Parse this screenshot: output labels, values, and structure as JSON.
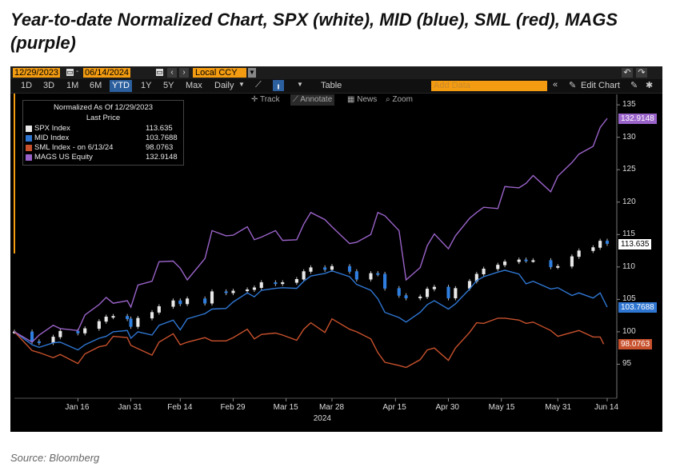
{
  "title": "Year-to-date Normalized Chart, SPX (white), MID (blue), SML (red), MAGS (purple)",
  "source": "Source: Bloomberg",
  "toolbar": {
    "start_date": "12/29/2023",
    "end_date": "06/14/2024",
    "currency": "Local CCY",
    "ranges": [
      "1D",
      "3D",
      "1M",
      "6M",
      "YTD",
      "1Y",
      "5Y",
      "Max"
    ],
    "active_range": "YTD",
    "frequency": "Daily",
    "table_label": "Table",
    "add_data_placeholder": "Add Data",
    "edit_chart_label": "Edit Chart",
    "tools": [
      "Track",
      "Annotate",
      "News",
      "Zoom"
    ],
    "active_tool": "Annotate"
  },
  "colors": {
    "spx": "#e8e8e8",
    "mid": "#2f76d2",
    "sml": "#c8512d",
    "mags": "#9a63c9",
    "active_button": "#2c5f9e",
    "accent_orange": "#f39c12"
  },
  "legend": {
    "header1": "Normalized As Of 12/29/2023",
    "header2": "Last Price",
    "items": [
      {
        "name": "SPX Index",
        "value": "113.635"
      },
      {
        "name": "MID Index",
        "value": "103.7688"
      },
      {
        "name": "SML Index - on 6/13/24",
        "value": "98.0763"
      },
      {
        "name": "MAGS US Equity",
        "value": "132.9148"
      }
    ]
  },
  "chart_data": {
    "type": "line",
    "title": "",
    "xlabel": "2024",
    "ylabel": "",
    "ylim": [
      90,
      136
    ],
    "y_ticks": [
      95,
      100,
      105,
      110,
      115,
      120,
      125,
      130,
      135
    ],
    "x_tick_labels": [
      "Jan 16",
      "Jan 31",
      "Feb 14",
      "Feb 29",
      "Mar 15",
      "Mar 28",
      "Apr 15",
      "Apr 30",
      "May 15",
      "May 31",
      "Jun 14"
    ],
    "x_tick_dates": [
      "2024-01-16",
      "2024-01-31",
      "2024-02-14",
      "2024-02-29",
      "2024-03-15",
      "2024-03-28",
      "2024-04-15",
      "2024-04-30",
      "2024-05-15",
      "2024-05-31",
      "2024-06-14"
    ],
    "x_range": [
      "2023-12-29",
      "2024-06-14"
    ],
    "series": [
      {
        "name": "SPX Index",
        "style": "candlestick",
        "last": "113.635",
        "x": [
          "2023-12-29",
          "2024-01-03",
          "2024-01-05",
          "2024-01-09",
          "2024-01-11",
          "2024-01-16",
          "2024-01-18",
          "2024-01-22",
          "2024-01-24",
          "2024-01-26",
          "2024-01-30",
          "2024-01-31",
          "2024-02-02",
          "2024-02-06",
          "2024-02-08",
          "2024-02-12",
          "2024-02-14",
          "2024-02-16",
          "2024-02-21",
          "2024-02-23",
          "2024-02-27",
          "2024-02-29",
          "2024-03-04",
          "2024-03-06",
          "2024-03-08",
          "2024-03-12",
          "2024-03-14",
          "2024-03-18",
          "2024-03-20",
          "2024-03-22",
          "2024-03-26",
          "2024-03-28",
          "2024-04-02",
          "2024-04-04",
          "2024-04-08",
          "2024-04-10",
          "2024-04-12",
          "2024-04-16",
          "2024-04-18",
          "2024-04-22",
          "2024-04-24",
          "2024-04-26",
          "2024-04-30",
          "2024-05-02",
          "2024-05-06",
          "2024-05-08",
          "2024-05-10",
          "2024-05-14",
          "2024-05-16",
          "2024-05-20",
          "2024-05-22",
          "2024-05-24",
          "2024-05-29",
          "2024-05-31",
          "2024-06-04",
          "2024-06-06",
          "2024-06-10",
          "2024-06-12",
          "2024-06-14"
        ],
        "values": [
          100.0,
          98.5,
          98.3,
          99.2,
          100.1,
          99.8,
          100.5,
          101.6,
          102.3,
          102.4,
          102.0,
          100.8,
          102.1,
          103.0,
          103.9,
          104.8,
          104.3,
          105.1,
          104.4,
          106.2,
          106.0,
          106.3,
          106.5,
          106.8,
          107.6,
          107.4,
          107.6,
          108.1,
          109.3,
          109.9,
          109.6,
          110.1,
          109.3,
          108.1,
          109.0,
          108.9,
          106.7,
          105.6,
          105.2,
          105.4,
          106.6,
          106.9,
          105.2,
          106.7,
          107.8,
          108.9,
          109.7,
          110.3,
          110.8,
          111.1,
          111.0,
          111.0,
          110.0,
          110.1,
          111.6,
          112.5,
          113.0,
          114.0,
          113.6
        ]
      },
      {
        "name": "MID Index",
        "last": "103.7688",
        "x": [
          "2023-12-29",
          "2024-01-03",
          "2024-01-05",
          "2024-01-09",
          "2024-01-11",
          "2024-01-16",
          "2024-01-18",
          "2024-01-22",
          "2024-01-24",
          "2024-01-26",
          "2024-01-30",
          "2024-01-31",
          "2024-02-02",
          "2024-02-06",
          "2024-02-08",
          "2024-02-12",
          "2024-02-14",
          "2024-02-16",
          "2024-02-21",
          "2024-02-23",
          "2024-02-27",
          "2024-02-29",
          "2024-03-04",
          "2024-03-06",
          "2024-03-08",
          "2024-03-12",
          "2024-03-14",
          "2024-03-18",
          "2024-03-20",
          "2024-03-22",
          "2024-03-26",
          "2024-03-28",
          "2024-04-02",
          "2024-04-04",
          "2024-04-08",
          "2024-04-10",
          "2024-04-12",
          "2024-04-16",
          "2024-04-18",
          "2024-04-22",
          "2024-04-24",
          "2024-04-26",
          "2024-04-30",
          "2024-05-02",
          "2024-05-06",
          "2024-05-08",
          "2024-05-10",
          "2024-05-14",
          "2024-05-16",
          "2024-05-20",
          "2024-05-22",
          "2024-05-24",
          "2024-05-29",
          "2024-05-31",
          "2024-06-04",
          "2024-06-06",
          "2024-06-10",
          "2024-06-12",
          "2024-06-14"
        ],
        "values": [
          100.0,
          98.0,
          97.6,
          98.3,
          98.4,
          97.2,
          98.0,
          99.0,
          99.3,
          100.0,
          100.2,
          99.0,
          100.0,
          99.5,
          101.0,
          101.8,
          100.3,
          102.0,
          102.8,
          103.5,
          103.6,
          104.6,
          106.0,
          105.4,
          106.4,
          106.7,
          106.8,
          106.7,
          107.8,
          108.6,
          109.0,
          109.4,
          108.5,
          107.3,
          106.4,
          105.1,
          103.0,
          102.2,
          101.5,
          103.0,
          104.2,
          104.8,
          103.5,
          104.3,
          106.6,
          107.9,
          108.5,
          109.2,
          109.5,
          108.9,
          107.4,
          107.8,
          106.6,
          106.8,
          105.6,
          106.0,
          105.2,
          106.0,
          103.8
        ]
      },
      {
        "name": "SML Index",
        "last": "98.0763",
        "x": [
          "2023-12-29",
          "2024-01-03",
          "2024-01-05",
          "2024-01-09",
          "2024-01-11",
          "2024-01-16",
          "2024-01-18",
          "2024-01-22",
          "2024-01-24",
          "2024-01-26",
          "2024-01-30",
          "2024-01-31",
          "2024-02-02",
          "2024-02-06",
          "2024-02-08",
          "2024-02-12",
          "2024-02-14",
          "2024-02-16",
          "2024-02-21",
          "2024-02-23",
          "2024-02-27",
          "2024-02-29",
          "2024-03-04",
          "2024-03-06",
          "2024-03-08",
          "2024-03-12",
          "2024-03-14",
          "2024-03-18",
          "2024-03-20",
          "2024-03-22",
          "2024-03-26",
          "2024-03-28",
          "2024-04-02",
          "2024-04-04",
          "2024-04-08",
          "2024-04-10",
          "2024-04-12",
          "2024-04-16",
          "2024-04-18",
          "2024-04-22",
          "2024-04-24",
          "2024-04-26",
          "2024-04-30",
          "2024-05-02",
          "2024-05-06",
          "2024-05-08",
          "2024-05-10",
          "2024-05-14",
          "2024-05-16",
          "2024-05-20",
          "2024-05-22",
          "2024-05-24",
          "2024-05-29",
          "2024-05-31",
          "2024-06-04",
          "2024-06-06",
          "2024-06-10",
          "2024-06-12",
          "2024-06-13"
        ],
        "values": [
          100.0,
          97.1,
          96.8,
          96.0,
          96.5,
          95.1,
          96.6,
          97.7,
          97.9,
          99.3,
          99.1,
          97.9,
          97.4,
          96.4,
          98.4,
          99.7,
          98.0,
          98.4,
          99.1,
          98.6,
          98.6,
          99.1,
          100.4,
          98.9,
          99.6,
          99.8,
          99.5,
          98.7,
          100.4,
          101.4,
          99.9,
          102.0,
          100.4,
          100.0,
          98.9,
          96.8,
          95.3,
          94.8,
          94.5,
          95.7,
          97.2,
          97.5,
          95.6,
          97.5,
          99.9,
          101.4,
          101.3,
          102.1,
          102.1,
          101.8,
          101.3,
          101.5,
          100.2,
          99.3,
          99.9,
          100.2,
          99.2,
          99.2,
          98.1
        ]
      },
      {
        "name": "MAGS US Equity",
        "last": "132.9148",
        "x": [
          "2023-12-29",
          "2024-01-03",
          "2024-01-05",
          "2024-01-09",
          "2024-01-11",
          "2024-01-16",
          "2024-01-18",
          "2024-01-22",
          "2024-01-24",
          "2024-01-26",
          "2024-01-30",
          "2024-01-31",
          "2024-02-02",
          "2024-02-06",
          "2024-02-08",
          "2024-02-12",
          "2024-02-14",
          "2024-02-16",
          "2024-02-21",
          "2024-02-23",
          "2024-02-27",
          "2024-02-29",
          "2024-03-04",
          "2024-03-06",
          "2024-03-08",
          "2024-03-12",
          "2024-03-14",
          "2024-03-18",
          "2024-03-20",
          "2024-03-22",
          "2024-03-26",
          "2024-03-28",
          "2024-04-02",
          "2024-04-04",
          "2024-04-08",
          "2024-04-10",
          "2024-04-12",
          "2024-04-16",
          "2024-04-18",
          "2024-04-22",
          "2024-04-24",
          "2024-04-26",
          "2024-04-30",
          "2024-05-02",
          "2024-05-06",
          "2024-05-08",
          "2024-05-10",
          "2024-05-14",
          "2024-05-16",
          "2024-05-20",
          "2024-05-22",
          "2024-05-24",
          "2024-05-29",
          "2024-05-31",
          "2024-06-04",
          "2024-06-06",
          "2024-06-10",
          "2024-06-12",
          "2024-06-14"
        ],
        "values": [
          100.0,
          98.4,
          99.5,
          101.0,
          100.5,
          100.2,
          102.6,
          104.2,
          105.3,
          104.4,
          104.8,
          103.8,
          107.2,
          107.8,
          110.8,
          110.9,
          109.8,
          108.0,
          111.3,
          115.6,
          114.8,
          114.9,
          116.2,
          114.2,
          114.6,
          115.6,
          114.1,
          114.2,
          116.6,
          118.4,
          117.3,
          116.2,
          113.6,
          113.8,
          115.0,
          118.4,
          117.9,
          115.6,
          108.0,
          109.9,
          113.3,
          115.1,
          112.8,
          114.8,
          117.5,
          118.4,
          119.2,
          119.0,
          122.4,
          122.2,
          122.9,
          124.1,
          121.6,
          124.0,
          126.1,
          127.4,
          128.6,
          131.5,
          132.9
        ]
      }
    ]
  }
}
